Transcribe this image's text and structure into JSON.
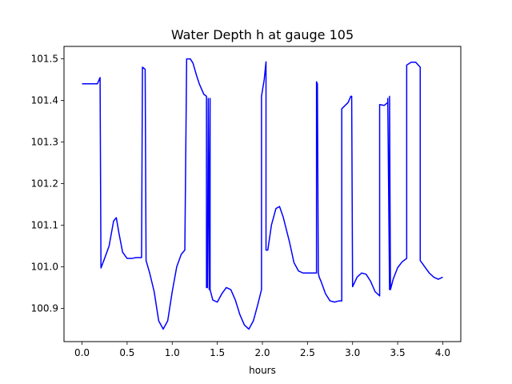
{
  "chart_data": {
    "type": "line",
    "title": "Water Depth h at gauge 105",
    "xlabel": "hours",
    "ylabel": "",
    "xlim": [
      -0.2,
      4.2
    ],
    "ylim": [
      100.82,
      101.53
    ],
    "grid": false,
    "legend": "none",
    "xticks": [
      0.0,
      0.5,
      1.0,
      1.5,
      2.0,
      2.5,
      3.0,
      3.5,
      4.0
    ],
    "xtick_labels": [
      "0.0",
      "0.5",
      "1.0",
      "1.5",
      "2.0",
      "2.5",
      "3.0",
      "3.5",
      "4.0"
    ],
    "yticks": [
      100.9,
      101.0,
      101.1,
      101.2,
      101.3,
      101.4,
      101.5
    ],
    "ytick_labels": [
      "100.9",
      "101.0",
      "101.1",
      "101.2",
      "101.3",
      "101.4",
      "101.5"
    ],
    "series": [
      {
        "color": "#0000ff",
        "x": [
          0.0,
          0.1,
          0.17,
          0.2,
          0.21,
          0.21,
          0.25,
          0.3,
          0.35,
          0.38,
          0.41,
          0.45,
          0.5,
          0.55,
          0.6,
          0.66,
          0.67,
          0.67,
          0.7,
          0.71,
          0.71,
          0.75,
          0.8,
          0.85,
          0.9,
          0.95,
          1.0,
          1.05,
          1.1,
          1.14,
          1.16,
          1.16,
          1.2,
          1.23,
          1.27,
          1.3,
          1.35,
          1.38,
          1.38,
          1.39,
          1.4,
          1.41,
          1.41,
          1.42,
          1.42,
          1.45,
          1.5,
          1.55,
          1.6,
          1.65,
          1.7,
          1.75,
          1.8,
          1.85,
          1.9,
          1.95,
          1.99,
          1.99,
          2.02,
          2.04,
          2.04,
          2.06,
          2.1,
          2.15,
          2.19,
          2.23,
          2.3,
          2.35,
          2.4,
          2.45,
          2.5,
          2.55,
          2.6,
          2.6,
          2.61,
          2.62,
          2.62,
          2.63,
          2.65,
          2.7,
          2.75,
          2.8,
          2.85,
          2.88,
          2.88,
          2.95,
          2.98,
          2.99,
          3.0,
          3.05,
          3.1,
          3.15,
          3.2,
          3.25,
          3.3,
          3.3,
          3.35,
          3.39,
          3.39,
          3.41,
          3.41,
          3.42,
          3.42,
          3.45,
          3.5,
          3.55,
          3.6,
          3.6,
          3.65,
          3.7,
          3.75,
          3.75,
          3.8,
          3.85,
          3.9,
          3.95,
          4.0
        ],
        "y": [
          101.44,
          101.44,
          101.44,
          101.455,
          100.997,
          100.997,
          101.02,
          101.05,
          101.11,
          101.118,
          101.08,
          101.035,
          101.02,
          101.02,
          101.022,
          101.022,
          101.48,
          101.48,
          101.475,
          101.015,
          101.015,
          100.985,
          100.94,
          100.87,
          100.85,
          100.87,
          100.94,
          101.0,
          101.03,
          101.04,
          101.5,
          101.5,
          101.5,
          101.49,
          101.46,
          101.44,
          101.415,
          101.41,
          100.95,
          100.95,
          101.405,
          100.945,
          100.945,
          101.405,
          100.945,
          100.92,
          100.915,
          100.935,
          100.95,
          100.945,
          100.92,
          100.885,
          100.86,
          100.85,
          100.87,
          100.91,
          100.945,
          101.41,
          101.45,
          101.493,
          101.04,
          101.04,
          101.1,
          101.14,
          101.145,
          101.12,
          101.06,
          101.01,
          100.99,
          100.985,
          100.985,
          100.985,
          100.985,
          101.445,
          101.44,
          100.985,
          100.985,
          100.975,
          100.965,
          100.935,
          100.918,
          100.915,
          100.918,
          100.918,
          101.38,
          101.395,
          101.41,
          101.41,
          100.952,
          100.975,
          100.985,
          100.982,
          100.965,
          100.94,
          100.93,
          101.39,
          101.388,
          101.395,
          101.405,
          100.945,
          101.41,
          100.945,
          100.945,
          100.97,
          100.998,
          101.012,
          101.02,
          101.485,
          101.492,
          101.492,
          101.48,
          101.015,
          101.0,
          100.985,
          100.975,
          100.97,
          100.975
        ]
      }
    ]
  }
}
